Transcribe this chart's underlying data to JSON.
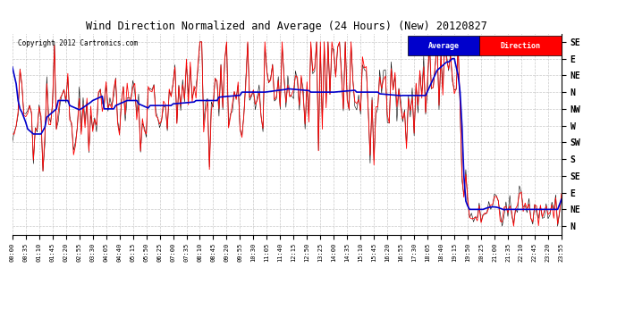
{
  "title": "Wind Direction Normalized and Average (24 Hours) (New) 20120827",
  "copyright": "Copyright 2012 Cartronics.com",
  "background_color": "#ffffff",
  "plot_bg_color": "#ffffff",
  "grid_color": "#bbbbbb",
  "y_labels_top_to_bottom": [
    "SE",
    "E",
    "NE",
    "N",
    "NW",
    "W",
    "SW",
    "S",
    "SE",
    "E",
    "NE",
    "N"
  ],
  "red_line_color": "#ff0000",
  "blue_line_color": "#0000cc",
  "black_line_color": "#000000",
  "avg_legend_bg": "#0000cc",
  "dir_legend_bg": "#ff0000"
}
